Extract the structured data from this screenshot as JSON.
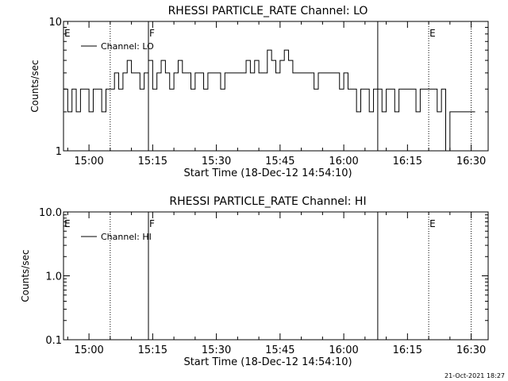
{
  "footer_timestamp": "21-Oct-2021 18:27",
  "chart_data": [
    {
      "type": "line",
      "title": "RHESSI PARTICLE_RATE Channel: LO",
      "xlabel": "Start Time (18-Dec-12 14:54:10)",
      "ylabel": "Counts/sec",
      "yscale": "log",
      "ylim": [
        1,
        10
      ],
      "xlim": [
        "14:54",
        "16:34"
      ],
      "x_ticks": [
        "15:00",
        "15:15",
        "15:30",
        "15:45",
        "16:00",
        "16:15",
        "16:30"
      ],
      "y_ticks": [
        "1",
        "10"
      ],
      "legend": {
        "entries": [
          "Channel: LO"
        ],
        "placement": "top-left"
      },
      "flag_lines": [
        {
          "time": "15:05",
          "style": "dotted",
          "label": ""
        },
        {
          "time": "15:14",
          "style": "solid",
          "label": "F"
        },
        {
          "time": "16:08",
          "style": "solid",
          "label": ""
        },
        {
          "time": "16:20",
          "style": "dotted",
          "label": "E"
        },
        {
          "time": "16:30",
          "style": "dotted",
          "label": ""
        }
      ],
      "edge_label": "E",
      "series": [
        {
          "values": [
            [
              "14:54",
              3
            ],
            [
              "14:55",
              2
            ],
            [
              "14:56",
              3
            ],
            [
              "14:57",
              2
            ],
            [
              "14:58",
              3
            ],
            [
              "14:59",
              3
            ],
            [
              "15:00",
              2
            ],
            [
              "15:01",
              3
            ],
            [
              "15:02",
              3
            ],
            [
              "15:03",
              2
            ],
            [
              "15:04",
              3
            ],
            [
              "15:05",
              3
            ],
            [
              "15:06",
              4
            ],
            [
              "15:07",
              3
            ],
            [
              "15:08",
              4
            ],
            [
              "15:09",
              5
            ],
            [
              "15:10",
              4
            ],
            [
              "15:11",
              4
            ],
            [
              "15:12",
              3
            ],
            [
              "15:13",
              4
            ],
            [
              "15:14",
              5
            ],
            [
              "15:15",
              3
            ],
            [
              "15:16",
              4
            ],
            [
              "15:17",
              5
            ],
            [
              "15:18",
              4
            ],
            [
              "15:19",
              3
            ],
            [
              "15:20",
              4
            ],
            [
              "15:21",
              5
            ],
            [
              "15:22",
              4
            ],
            [
              "15:23",
              4
            ],
            [
              "15:24",
              3
            ],
            [
              "15:25",
              4
            ],
            [
              "15:26",
              4
            ],
            [
              "15:27",
              3
            ],
            [
              "15:28",
              4
            ],
            [
              "15:29",
              4
            ],
            [
              "15:30",
              4
            ],
            [
              "15:31",
              3
            ],
            [
              "15:32",
              4
            ],
            [
              "15:33",
              4
            ],
            [
              "15:34",
              4
            ],
            [
              "15:35",
              4
            ],
            [
              "15:36",
              4
            ],
            [
              "15:37",
              5
            ],
            [
              "15:38",
              4
            ],
            [
              "15:39",
              5
            ],
            [
              "15:40",
              4
            ],
            [
              "15:41",
              4
            ],
            [
              "15:42",
              6
            ],
            [
              "15:43",
              5
            ],
            [
              "15:44",
              4
            ],
            [
              "15:45",
              5
            ],
            [
              "15:46",
              6
            ],
            [
              "15:47",
              5
            ],
            [
              "15:48",
              4
            ],
            [
              "15:49",
              4
            ],
            [
              "15:50",
              4
            ],
            [
              "15:51",
              4
            ],
            [
              "15:52",
              4
            ],
            [
              "15:53",
              3
            ],
            [
              "15:54",
              4
            ],
            [
              "15:55",
              4
            ],
            [
              "15:56",
              4
            ],
            [
              "15:57",
              4
            ],
            [
              "15:58",
              4
            ],
            [
              "15:59",
              3
            ],
            [
              "16:00",
              4
            ],
            [
              "16:01",
              3
            ],
            [
              "16:02",
              3
            ],
            [
              "16:03",
              2
            ],
            [
              "16:04",
              3
            ],
            [
              "16:05",
              3
            ],
            [
              "16:06",
              2
            ],
            [
              "16:07",
              3
            ],
            [
              "16:08",
              3
            ],
            [
              "16:09",
              2
            ],
            [
              "16:10",
              3
            ],
            [
              "16:11",
              3
            ],
            [
              "16:12",
              2
            ],
            [
              "16:13",
              3
            ],
            [
              "16:14",
              3
            ],
            [
              "16:15",
              3
            ],
            [
              "16:16",
              3
            ],
            [
              "16:17",
              2
            ],
            [
              "16:18",
              3
            ],
            [
              "16:19",
              3
            ],
            [
              "16:20",
              3
            ],
            [
              "16:21",
              3
            ],
            [
              "16:22",
              2
            ],
            [
              "16:23",
              3
            ],
            [
              "16:24",
              1
            ],
            [
              "16:25",
              2
            ],
            [
              "16:26",
              2
            ],
            [
              "16:27",
              2
            ],
            [
              "16:28",
              2
            ],
            [
              "16:29",
              2
            ],
            [
              "16:30",
              2
            ]
          ]
        }
      ]
    },
    {
      "type": "line",
      "title": "RHESSI PARTICLE_RATE Channel: HI",
      "xlabel": "Start Time (18-Dec-12 14:54:10)",
      "ylabel": "Counts/sec",
      "yscale": "log",
      "ylim": [
        0.1,
        10
      ],
      "xlim": [
        "14:54",
        "16:34"
      ],
      "x_ticks": [
        "15:00",
        "15:15",
        "15:30",
        "15:45",
        "16:00",
        "16:15",
        "16:30"
      ],
      "y_ticks": [
        "0.1",
        "1.0",
        "10.0"
      ],
      "legend": {
        "entries": [
          "Channel: HI"
        ],
        "placement": "top-left"
      },
      "flag_lines": [
        {
          "time": "15:05",
          "style": "dotted",
          "label": ""
        },
        {
          "time": "15:14",
          "style": "solid",
          "label": "F"
        },
        {
          "time": "16:08",
          "style": "solid",
          "label": ""
        },
        {
          "time": "16:20",
          "style": "dotted",
          "label": "E"
        },
        {
          "time": "16:30",
          "style": "dotted",
          "label": ""
        }
      ],
      "edge_label": "E",
      "series": [
        {
          "values": []
        }
      ]
    }
  ]
}
